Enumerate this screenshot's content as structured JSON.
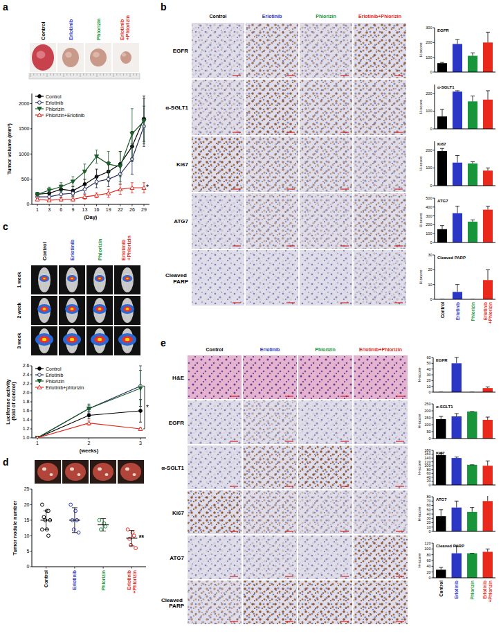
{
  "chart_data": [
    {
      "type": "line",
      "categories": [
        "1",
        "3",
        "6",
        "9",
        "13",
        "16",
        "19",
        "22",
        "26",
        "29"
      ],
      "x_label": "(Day)",
      "y_label": "Tumor volume (mm³)",
      "ylim": [
        0,
        2200
      ],
      "yticks": [
        0,
        500,
        1000,
        1500,
        2000
      ],
      "legend": "upper left",
      "annotations": [
        "*"
      ],
      "series": [
        {
          "name": "Control",
          "color": "#000000",
          "marker": "circle",
          "values": [
            200,
            220,
            300,
            270,
            400,
            550,
            650,
            800,
            1150,
            1700
          ],
          "errors": [
            30,
            40,
            80,
            90,
            100,
            150,
            200,
            250,
            300,
            450
          ]
        },
        {
          "name": "Erlotinib",
          "color": "#232b5c",
          "marker": "open-circle",
          "values": [
            150,
            150,
            200,
            220,
            300,
            450,
            500,
            600,
            900,
            1550
          ],
          "errors": [
            30,
            30,
            60,
            60,
            80,
            120,
            150,
            200,
            300,
            400
          ]
        },
        {
          "name": "Phlorizin",
          "color": "#1d5e2b",
          "marker": "triangle-down",
          "values": [
            200,
            280,
            350,
            450,
            650,
            950,
            800,
            750,
            1400,
            1650
          ],
          "errors": [
            40,
            60,
            80,
            100,
            150,
            130,
            250,
            300,
            500,
            450
          ]
        },
        {
          "name": "Phlorizin+Erlotinib",
          "color": "#e3261c",
          "marker": "open-triangle",
          "values": [
            100,
            80,
            100,
            100,
            150,
            180,
            220,
            300,
            330,
            330
          ],
          "errors": [
            20,
            20,
            30,
            30,
            50,
            50,
            80,
            100,
            100,
            100
          ]
        }
      ]
    },
    {
      "type": "bar",
      "title": "EGFR",
      "y_label": "H-score",
      "categories": [
        null,
        null,
        null,
        null
      ],
      "colors": [
        "#000000",
        "#2b36c4",
        "#18953a",
        "#e8291c"
      ],
      "ylim": [
        0,
        300
      ],
      "yticks": [
        0,
        100,
        200,
        300
      ],
      "values": [
        60,
        190,
        110,
        200
      ],
      "errors": [
        5,
        30,
        20,
        70
      ]
    },
    {
      "type": "bar",
      "title": "α-SGLT1",
      "y_label": "H-score",
      "categories": [
        null,
        null,
        null,
        null
      ],
      "colors": [
        "#000000",
        "#2b36c4",
        "#18953a",
        "#e8291c"
      ],
      "ylim": [
        0,
        250
      ],
      "yticks": [
        0,
        100,
        200
      ],
      "values": [
        70,
        210,
        155,
        165
      ],
      "errors": [
        40,
        5,
        30,
        50
      ]
    },
    {
      "type": "bar",
      "title": "Ki67",
      "y_label": "H-score",
      "categories": [
        null,
        null,
        null,
        null
      ],
      "colors": [
        "#000000",
        "#2b36c4",
        "#18953a",
        "#e8291c"
      ],
      "ylim": [
        0,
        250
      ],
      "yticks": [
        0,
        100,
        200
      ],
      "values": [
        195,
        130,
        125,
        85
      ],
      "errors": [
        15,
        40,
        10,
        15
      ]
    },
    {
      "type": "bar",
      "title": "ATG7",
      "y_label": "H-score",
      "categories": [
        null,
        null,
        null,
        null
      ],
      "colors": [
        "#000000",
        "#2b36c4",
        "#18953a",
        "#e8291c"
      ],
      "ylim": [
        0,
        500
      ],
      "yticks": [
        0,
        100,
        200,
        300,
        400,
        500
      ],
      "values": [
        150,
        330,
        235,
        370
      ],
      "errors": [
        40,
        80,
        20,
        40
      ]
    },
    {
      "type": "bar",
      "title": "Cleaved PARP",
      "y_label": "H-score",
      "categories": [
        "Control",
        "Erlotinib",
        "Phlorizin",
        "Erlotinib+Phlorizin"
      ],
      "colors": [
        "#000000",
        "#2b36c4",
        "#18953a",
        "#e8291c"
      ],
      "ylim": [
        0,
        30
      ],
      "yticks": [
        0,
        10,
        20,
        30
      ],
      "values": [
        0,
        5,
        0,
        13
      ],
      "errors": [
        0,
        5,
        0,
        7
      ]
    },
    {
      "type": "line",
      "categories": [
        "1",
        "2",
        "3"
      ],
      "x_label": "(weeks)",
      "y_label": "Luciferase activity (fold of control)",
      "ylim": [
        1.0,
        2.6
      ],
      "yticks": [
        {
          "value": 1.0,
          "label": "1.0"
        },
        1.2,
        1.4,
        1.6,
        1.8,
        {
          "value": 2.0,
          "label": "2.0"
        },
        2.2,
        2.4,
        2.6
      ],
      "legend": "upper left",
      "annotations": [
        "*"
      ],
      "series": [
        {
          "name": "Control",
          "color": "#000000",
          "marker": "circle",
          "values": [
            1.0,
            1.5,
            1.6
          ],
          "errors": [
            0,
            0.08,
            0.25
          ]
        },
        {
          "name": "Erlotinib",
          "color": "#232b5c",
          "marker": "open-circle",
          "values": [
            1.0,
            1.65,
            2.15
          ],
          "errors": [
            0,
            0.1,
            0.45
          ]
        },
        {
          "name": "Phlorizin",
          "color": "#1d5e2b",
          "marker": "triangle-down",
          "values": [
            1.0,
            1.65,
            2.1
          ],
          "errors": [
            0,
            0.07,
            0.4
          ]
        },
        {
          "name": "Erlotinib+phlorizin",
          "color": "#e3261c",
          "marker": "open-triangle",
          "values": [
            1.0,
            1.33,
            1.2
          ],
          "errors": [
            0,
            0.05,
            0.02
          ]
        }
      ]
    },
    {
      "type": "dot",
      "y_label": "Tumor nodule number",
      "categories": [
        "Control",
        "Erlotinib",
        "Phlorizin",
        "Erlotinib+Phlorizin"
      ],
      "colors": [
        "#000000",
        "#2b36c4",
        "#18953a",
        "#e8291c"
      ],
      "marker": "open-circle",
      "ylim": [
        0,
        25
      ],
      "yticks": [
        0,
        5,
        10,
        15,
        20,
        25
      ],
      "annotations": [
        "**"
      ],
      "values": [
        [
          20,
          18,
          18,
          16,
          15,
          15,
          12,
          12,
          10
        ],
        [
          20,
          18,
          15,
          15,
          12,
          11
        ],
        [
          15,
          14,
          13,
          12
        ],
        [
          12,
          11,
          10,
          9,
          7,
          6
        ]
      ],
      "means": [
        15,
        15,
        13.5,
        9.2
      ],
      "errors": [
        3,
        4,
        2,
        2.5
      ]
    },
    {
      "type": "bar",
      "title": "EGFR",
      "y_label": "H-score",
      "categories": [
        null,
        null,
        null,
        null
      ],
      "colors": [
        "#000000",
        "#2b36c4",
        "#18953a",
        "#e8291c"
      ],
      "ylim": [
        0,
        60
      ],
      "yticks": [
        0,
        10,
        20,
        30,
        40,
        50,
        60
      ],
      "values": [
        0,
        50,
        0,
        7
      ],
      "errors": [
        0,
        10,
        0,
        2
      ]
    },
    {
      "type": "bar",
      "title": "α-SGLT1",
      "y_label": "H-score",
      "categories": [
        null,
        null,
        null,
        null
      ],
      "colors": [
        "#000000",
        "#2b36c4",
        "#18953a",
        "#e8291c"
      ],
      "ylim": [
        0,
        250
      ],
      "yticks": [
        0,
        50,
        100,
        150,
        200,
        250
      ],
      "values": [
        140,
        160,
        195,
        135
      ],
      "errors": [
        20,
        20,
        0,
        20
      ]
    },
    {
      "type": "bar",
      "title": "Ki67",
      "y_label": "H-score",
      "categories": [
        null,
        null,
        null,
        null
      ],
      "colors": [
        "#000000",
        "#2b36c4",
        "#18953a",
        "#e8291c"
      ],
      "ylim": [
        0,
        180
      ],
      "yticks": [
        0,
        20,
        40,
        60,
        80,
        100,
        120,
        140,
        160,
        180
      ],
      "values": [
        155,
        140,
        105,
        100
      ],
      "errors": [
        10,
        5,
        0,
        25
      ]
    },
    {
      "type": "bar",
      "title": "ATG7",
      "y_label": "H-score",
      "categories": [
        null,
        null,
        null,
        null
      ],
      "colors": [
        "#000000",
        "#2b36c4",
        "#18953a",
        "#e8291c"
      ],
      "ylim": [
        0,
        80
      ],
      "yticks": [
        0,
        10,
        20,
        30,
        40,
        50,
        60,
        70,
        80
      ],
      "values": [
        35,
        55,
        45,
        70
      ],
      "errors": [
        15,
        15,
        10,
        20
      ]
    },
    {
      "type": "bar",
      "title": "Cleaved PARP",
      "y_label": "H-score",
      "categories": [
        "Control",
        "Erlotinib",
        "Phlorizin",
        "Erlotinib+Phlorizin"
      ],
      "colors": [
        "#000000",
        "#2b36c4",
        "#18953a",
        "#e8291c"
      ],
      "ylim": [
        0,
        120
      ],
      "yticks": [
        0,
        20,
        40,
        60,
        80,
        100,
        120
      ],
      "values": [
        28,
        85,
        85,
        90
      ],
      "errors": [
        8,
        25,
        0,
        10
      ]
    }
  ],
  "figure": {
    "panel_labels": [
      "a",
      "b",
      "c",
      "d",
      "e"
    ],
    "groups": [
      {
        "label": "Control",
        "color": "#000000"
      },
      {
        "label": "Erlotinib",
        "color": "#2b36c4"
      },
      {
        "label": "Phlorizin",
        "color": "#18953a"
      },
      {
        "label": "Erlotinib+Phlorizin",
        "color": "#e8291c"
      }
    ],
    "b_rows": [
      "EGFR",
      "α-SGLT1",
      "Ki67",
      "ATG7",
      "Cleaved PARP"
    ],
    "c_rows": [
      "1 week",
      "2 week",
      "3 week"
    ],
    "e_rows": [
      "H&E",
      "EGFR",
      "α-SGLT1",
      "Ki67",
      "ATG7",
      "Cleaved PARP"
    ]
  }
}
